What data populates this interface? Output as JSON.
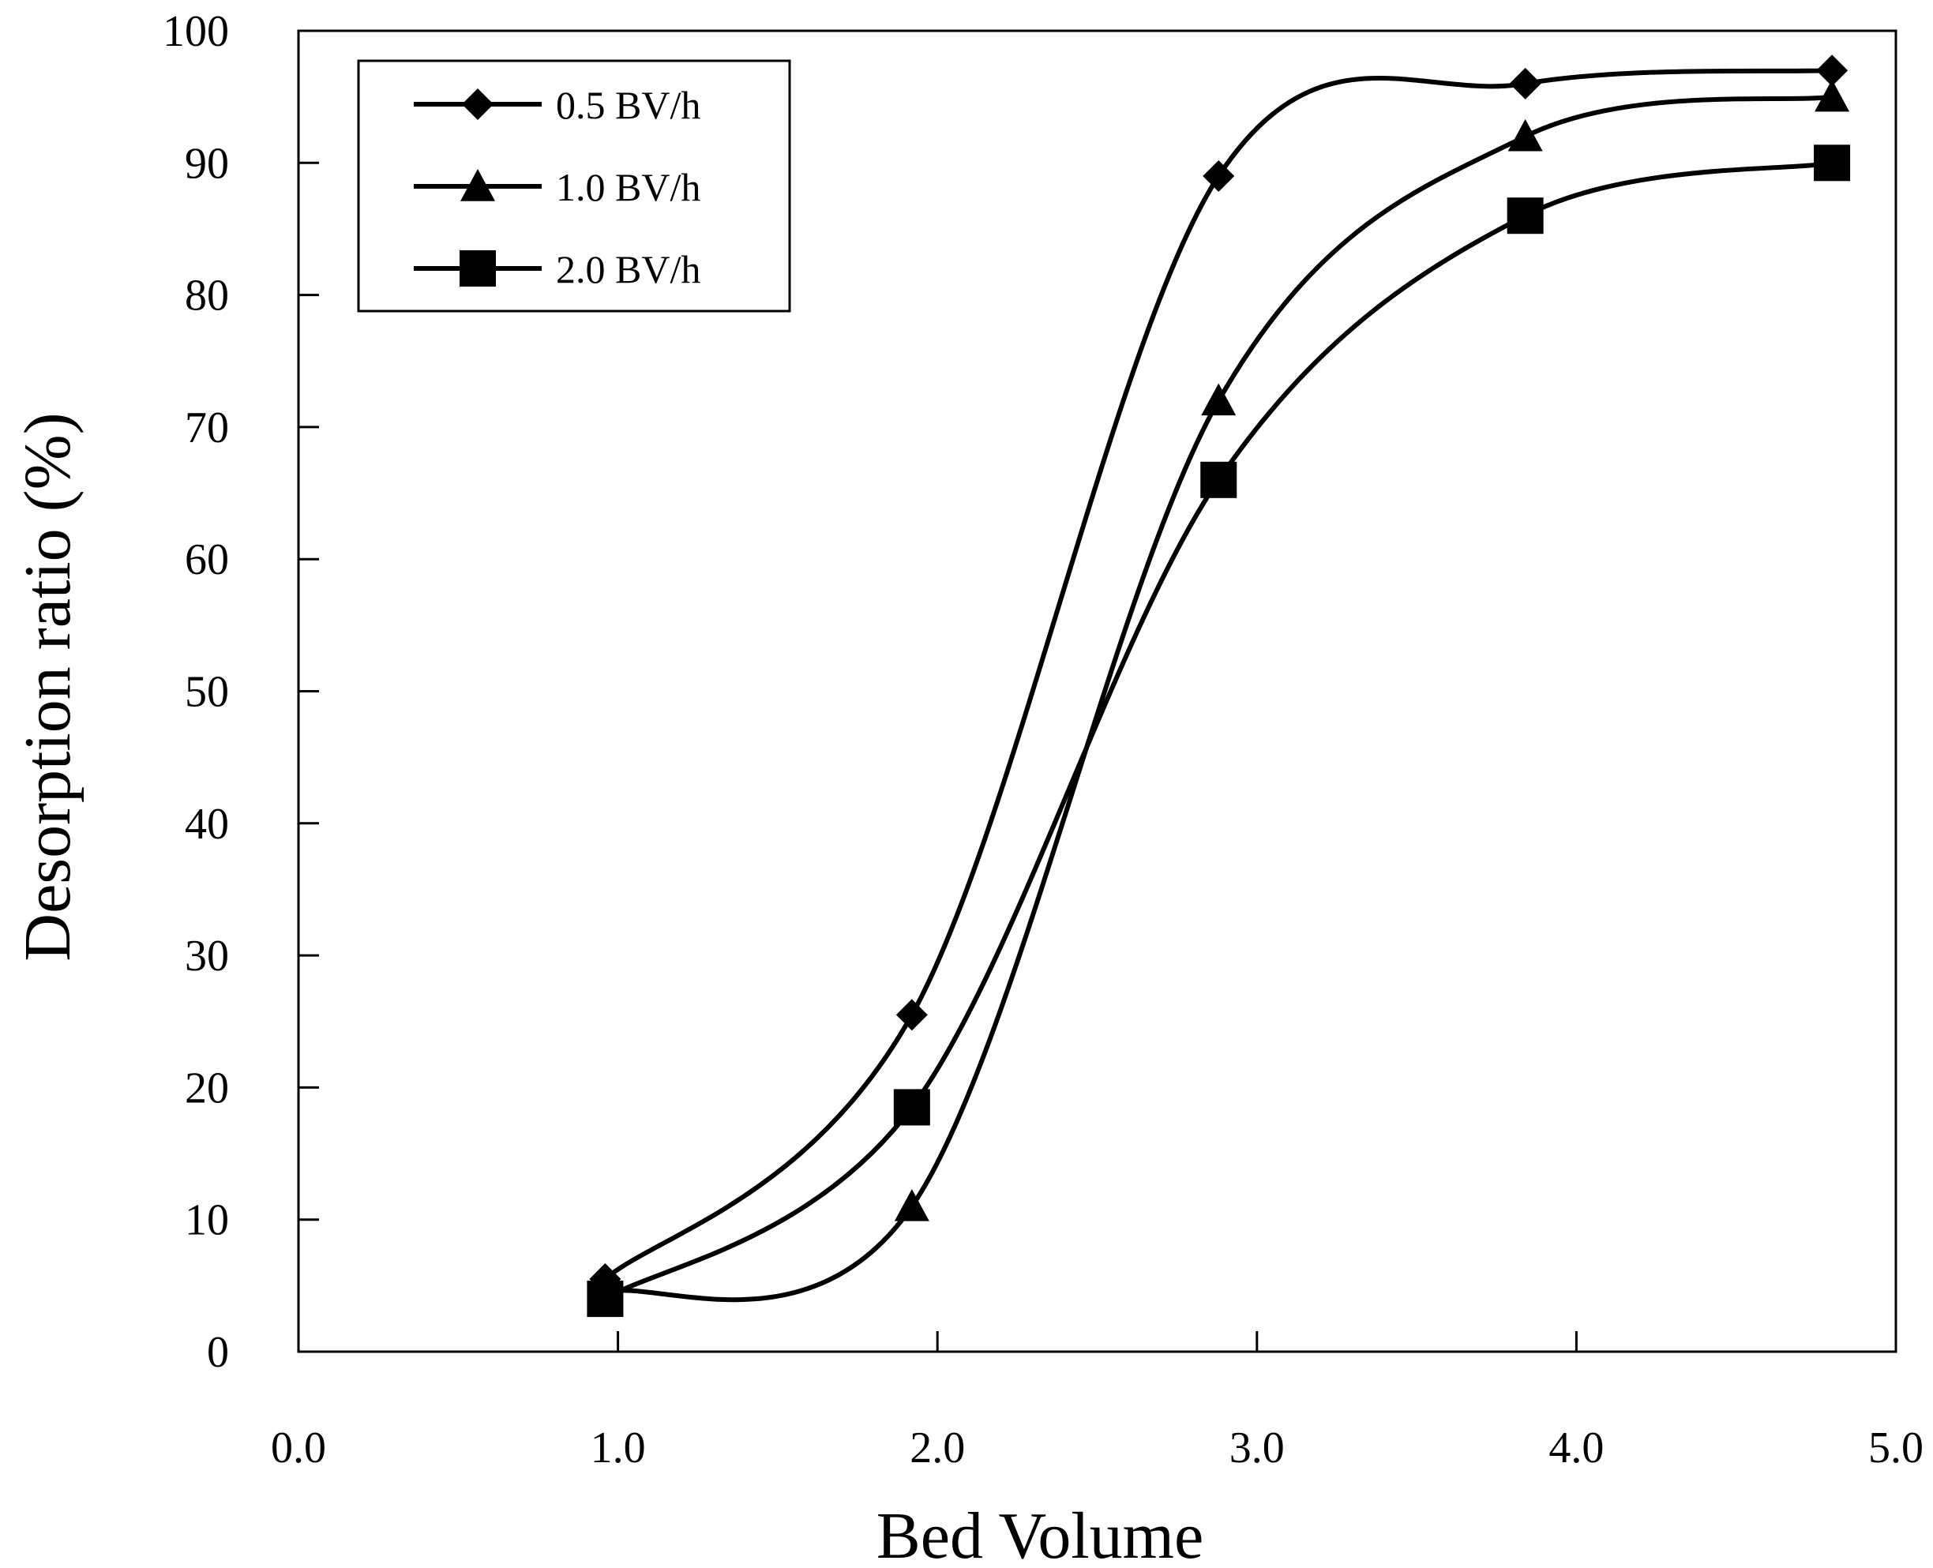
{
  "chart_data": {
    "type": "line",
    "smooth": true,
    "title": "",
    "xlabel": "Bed Volume",
    "ylabel": "Desorption ratio (%)",
    "xlim": [
      0,
      5
    ],
    "ylim": [
      0,
      100
    ],
    "x_ticks": [
      0,
      1,
      2,
      3,
      4,
      5
    ],
    "x_tick_labels": [
      "0.0",
      "1.0",
      "2.0",
      "3.0",
      "4.0",
      "5.0"
    ],
    "y_ticks": [
      0,
      10,
      20,
      30,
      40,
      50,
      60,
      70,
      80,
      90,
      100
    ],
    "y_tick_labels": [
      "0",
      "10",
      "20",
      "30",
      "40",
      "50",
      "60",
      "70",
      "80",
      "90",
      "100"
    ],
    "grid": false,
    "legend_position": "top-left",
    "series": [
      {
        "name": "0.5 BV/h",
        "marker": "diamond",
        "x": [
          0.96,
          1.92,
          2.88,
          3.84,
          4.8
        ],
        "y": [
          5.5,
          25.5,
          89,
          96,
          97
        ]
      },
      {
        "name": "1.0 BV/h",
        "marker": "triangle",
        "x": [
          0.96,
          1.92,
          2.88,
          3.84,
          4.8
        ],
        "y": [
          4.5,
          11,
          72,
          92,
          95
        ]
      },
      {
        "name": "2.0 BV/h",
        "marker": "square",
        "x": [
          0.96,
          1.92,
          2.88,
          3.84,
          4.8
        ],
        "y": [
          4,
          18.5,
          66,
          86,
          90
        ]
      }
    ]
  }
}
